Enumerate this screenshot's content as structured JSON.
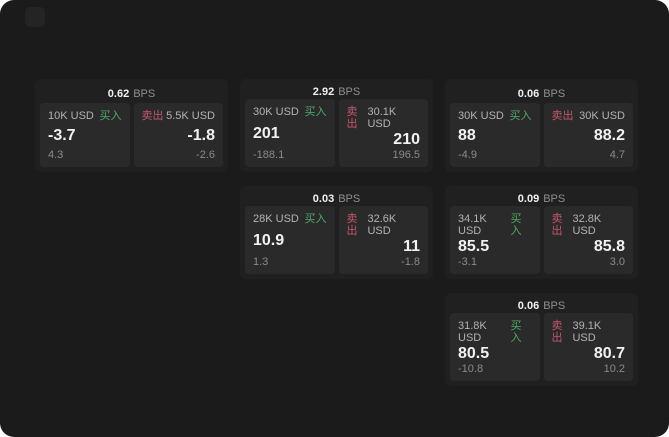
{
  "labels": {
    "bps": "BPS",
    "buy": "买入",
    "sell": "卖出"
  },
  "colors": {
    "page_bg": "#1b1b1b",
    "card_bg": "#202020",
    "panel_bg": "#2a2a2a",
    "buy_green": "#4fa96a",
    "sell_red": "#c5566b"
  },
  "cards": [
    {
      "col": 1,
      "row": 1,
      "bps": "0.62",
      "buy": {
        "amount": "10K USD",
        "price": "-3.7",
        "delta": "4.3"
      },
      "sell": {
        "amount": "5.5K USD",
        "price": "-1.8",
        "delta": "-2.6"
      }
    },
    {
      "col": 2,
      "row": 1,
      "bps": "2.92",
      "buy": {
        "amount": "30K USD",
        "price": "201",
        "delta": "-188.1"
      },
      "sell": {
        "amount": "30.1K USD",
        "price": "210",
        "delta": "196.5"
      }
    },
    {
      "col": 3,
      "row": 1,
      "bps": "0.06",
      "buy": {
        "amount": "30K USD",
        "price": "88",
        "delta": "-4.9"
      },
      "sell": {
        "amount": "30K USD",
        "price": "88.2",
        "delta": "4.7"
      }
    },
    {
      "col": 2,
      "row": 2,
      "bps": "0.03",
      "buy": {
        "amount": "28K USD",
        "price": "10.9",
        "delta": "1.3"
      },
      "sell": {
        "amount": "32.6K USD",
        "price": "11",
        "delta": "-1.8"
      }
    },
    {
      "col": 3,
      "row": 2,
      "bps": "0.09",
      "buy": {
        "amount": "34.1K USD",
        "price": "85.5",
        "delta": "-3.1"
      },
      "sell": {
        "amount": "32.8K USD",
        "price": "85.8",
        "delta": "3.0"
      }
    },
    {
      "col": 3,
      "row": 3,
      "bps": "0.06",
      "buy": {
        "amount": "31.8K USD",
        "price": "80.5",
        "delta": "-10.8"
      },
      "sell": {
        "amount": "39.1K USD",
        "price": "80.7",
        "delta": "10.2"
      }
    }
  ]
}
